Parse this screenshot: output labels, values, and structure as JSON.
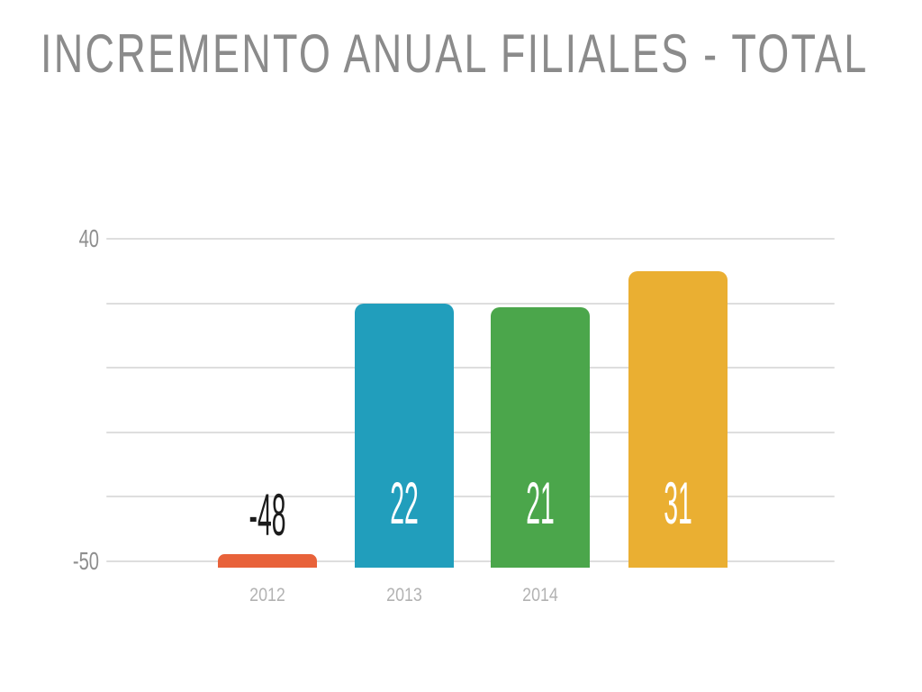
{
  "title": "INCREMENTO ANUAL FILIALES - TOTAL",
  "colors": {
    "background": "#FFFFFF",
    "title_text": "#8B8B8B",
    "gridline": "#DEDEDE",
    "y_tick_text": "#8E8E8E",
    "x_label_text": "#B2B2B2",
    "value_label_dark": "#1C1C1C",
    "value_label_light": "#FFFFFF"
  },
  "axis": {
    "y_top_label": "40",
    "y_bottom_label": "-50"
  },
  "chart_data": {
    "type": "bar",
    "title": "INCREMENTO ANUAL FILIALES - TOTAL",
    "categories": [
      "2012",
      "2013",
      "2014",
      ""
    ],
    "values": [
      -48,
      22,
      21,
      31
    ],
    "value_labels": [
      "-48",
      "22",
      "21",
      "31"
    ],
    "bar_colors": [
      "#E8623A",
      "#219EBC",
      "#4BA64B",
      "#EAAF32"
    ],
    "xlabel": "",
    "ylabel": "",
    "ylim": [
      -50,
      40
    ],
    "yticks_labeled": [
      "40",
      "-50"
    ],
    "gridline_values": [
      40,
      22,
      4,
      -14,
      -32,
      -50
    ],
    "grid": true,
    "legend": false,
    "baseline": -50
  }
}
